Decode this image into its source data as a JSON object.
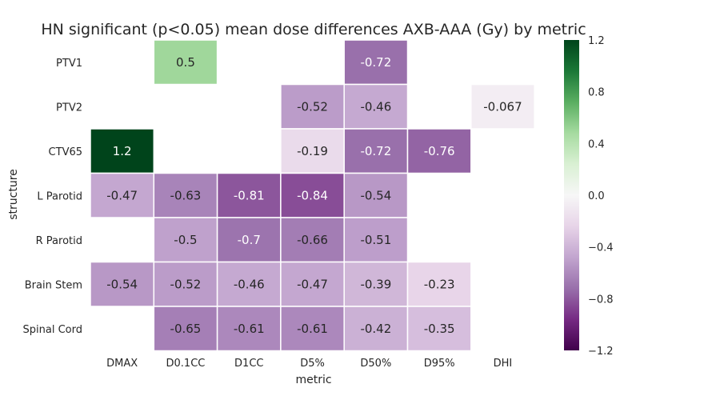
{
  "chart_data": {
    "type": "heatmap",
    "title": "HN significant (p<0.05) mean dose differences AXB-AAA (Gy) by metric",
    "xlabel": "metric",
    "ylabel": "structure",
    "x_categories": [
      "DMAX",
      "D0.1CC",
      "D1CC",
      "D5%",
      "D50%",
      "D95%",
      "DHI"
    ],
    "y_categories": [
      "PTV1",
      "PTV2",
      "CTV65",
      "L Parotid",
      "R Parotid",
      "Brain Stem",
      "Spinal Cord"
    ],
    "values": [
      [
        null,
        0.5,
        null,
        null,
        -0.72,
        null,
        null
      ],
      [
        null,
        null,
        null,
        -0.52,
        -0.46,
        null,
        -0.067
      ],
      [
        1.2,
        null,
        null,
        -0.19,
        -0.72,
        -0.76,
        null
      ],
      [
        -0.47,
        -0.63,
        -0.81,
        -0.84,
        -0.54,
        null,
        null
      ],
      [
        null,
        -0.5,
        -0.7,
        -0.66,
        -0.51,
        null,
        null
      ],
      [
        -0.54,
        -0.52,
        -0.46,
        -0.47,
        -0.39,
        -0.23,
        null
      ],
      [
        null,
        -0.65,
        -0.61,
        -0.61,
        -0.42,
        -0.35,
        null
      ]
    ],
    "value_labels": [
      [
        null,
        "0.5",
        null,
        null,
        "-0.72",
        null,
        null
      ],
      [
        null,
        null,
        null,
        "-0.52",
        "-0.46",
        null,
        "-0.067"
      ],
      [
        "1.2",
        null,
        null,
        "-0.19",
        "-0.72",
        "-0.76",
        null
      ],
      [
        "-0.47",
        "-0.63",
        "-0.81",
        "-0.84",
        "-0.54",
        null,
        null
      ],
      [
        null,
        "-0.5",
        "-0.7",
        "-0.66",
        "-0.51",
        null,
        null
      ],
      [
        "-0.54",
        "-0.52",
        "-0.46",
        "-0.47",
        "-0.39",
        "-0.23",
        null
      ],
      [
        null,
        "-0.65",
        "-0.61",
        "-0.61",
        "-0.42",
        "-0.35",
        null
      ]
    ],
    "colorbar": {
      "range": [
        -1.2,
        1.2
      ],
      "ticks": [
        1.2,
        0.8,
        0.4,
        0.0,
        -0.4,
        -0.8,
        -1.2
      ],
      "tick_labels": [
        "1.2",
        "0.8",
        "0.4",
        "0.0",
        "−0.4",
        "−0.8",
        "−1.2"
      ],
      "colormap": "PRGn",
      "colors": [
        "#40004b",
        "#762a83",
        "#9970ab",
        "#c2a5cf",
        "#e7d4e8",
        "#f7f7f7",
        "#d9f0d3",
        "#a6dba0",
        "#5aae61",
        "#1b7837",
        "#00441b"
      ]
    },
    "grid": false
  }
}
